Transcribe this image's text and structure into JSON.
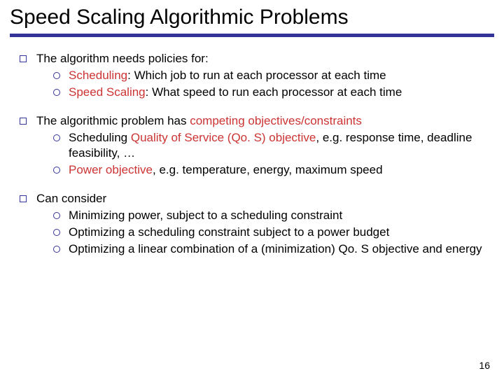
{
  "title": "Speed Scaling Algorithmic Problems",
  "colors": {
    "accent": "#333399",
    "highlight": "#cc3333",
    "text": "#000000",
    "background": "#ffffff"
  },
  "typography": {
    "fontFamily": "Comic Sans MS",
    "titleSize": 30,
    "bodySize": 17
  },
  "pageNumber": "16",
  "b0": {
    "lead": "The algorithm needs policies for:",
    "s0_pre": "",
    "s0_hl": "Scheduling",
    "s0_post": ": Which job to run at each processor at each time",
    "s1_pre": "",
    "s1_hl": "Speed Scaling",
    "s1_post": ": What speed to run each processor at each time"
  },
  "b1": {
    "lead_pre": "The algorithmic problem has ",
    "lead_hl": "competing objectives/constraints",
    "lead_post": "",
    "s0_pre": "Scheduling ",
    "s0_hl": "Quality of Service (Qo. S) objective",
    "s0_post": ", e.g. response time, deadline feasibility, …",
    "s1_pre": "",
    "s1_hl": "Power objective",
    "s1_post": ", e.g. temperature, energy, maximum speed"
  },
  "b2": {
    "lead": "Can consider",
    "s0": "Minimizing power, subject to a scheduling constraint",
    "s1": "Optimizing a scheduling constraint subject to a power budget",
    "s2": "Optimizing a linear combination of a (minimization) Qo. S objective and energy"
  }
}
